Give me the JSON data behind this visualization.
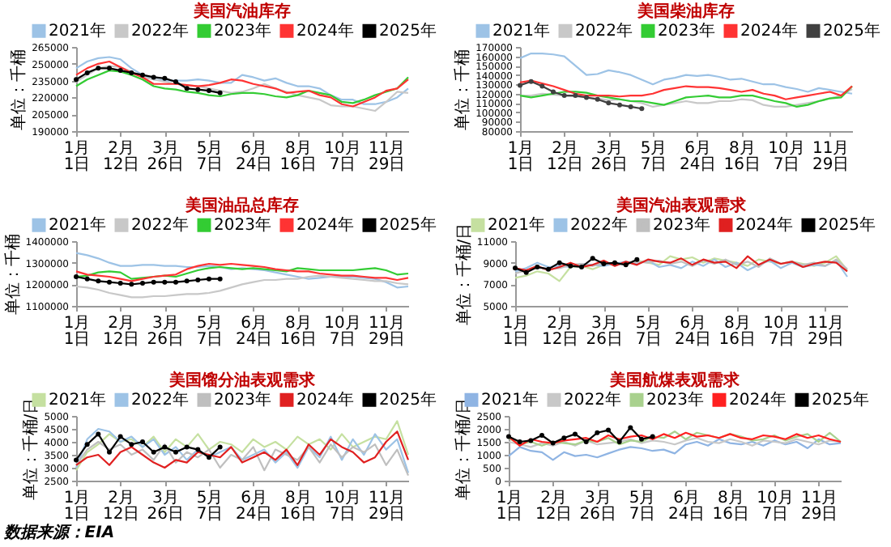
{
  "chart_data": [
    {
      "type": "line",
      "title": "美国汽油库存",
      "ylabel": "单位：千桶",
      "legend": "top",
      "categories": [
        "1月1日",
        null,
        null,
        null,
        "2月12日",
        null,
        null,
        null,
        "3月26日",
        null,
        null,
        null,
        "5月7日",
        null,
        null,
        null,
        "6月24日",
        null,
        null,
        null,
        "8月16日",
        null,
        null,
        null,
        "10月7日",
        null,
        null,
        null,
        "11月29日",
        null,
        null
      ],
      "ylim": [
        190000,
        265000
      ],
      "yticks": [
        190000,
        205000,
        220000,
        235000,
        250000,
        265000
      ],
      "series": [
        {
          "name": "2021年",
          "color": "#9dc3e6",
          "values": [
            246000,
            252000,
            255000,
            256000,
            254000,
            246000,
            240000,
            236000,
            235000,
            235000,
            235000,
            236000,
            235000,
            233000,
            233000,
            240000,
            238000,
            235000,
            237000,
            233000,
            230000,
            230000,
            228000,
            222000,
            218000,
            218000,
            214000,
            214000,
            216000,
            220000,
            228000
          ]
        },
        {
          "name": "2022年",
          "color": "#c8c8c8",
          "values": [
            234000,
            240000,
            246000,
            248000,
            247000,
            243000,
            238000,
            236000,
            234000,
            232000,
            231000,
            230000,
            228000,
            226000,
            224000,
            225000,
            228000,
            232000,
            228000,
            225000,
            222000,
            220000,
            218000,
            213000,
            212000,
            212000,
            210000,
            208000,
            216000,
            225000,
            224000
          ]
        },
        {
          "name": "2023年",
          "color": "#33cc33",
          "values": [
            230000,
            236000,
            240000,
            244000,
            243000,
            240000,
            236000,
            230000,
            228000,
            227000,
            225000,
            224000,
            222000,
            221000,
            223000,
            224000,
            224000,
            223000,
            221000,
            220000,
            222000,
            226000,
            224000,
            222000,
            216000,
            215000,
            218000,
            222000,
            225000,
            228000,
            238000
          ]
        },
        {
          "name": "2024年",
          "color": "#ff3333",
          "values": [
            240000,
            246000,
            250000,
            252000,
            247000,
            242000,
            238000,
            232000,
            232000,
            232000,
            231000,
            230000,
            231000,
            233000,
            236000,
            235000,
            232000,
            230000,
            228000,
            224000,
            225000,
            226000,
            222000,
            220000,
            214000,
            212000,
            216000,
            220000,
            226000,
            228000,
            236000
          ]
        },
        {
          "name": "2025年",
          "color": "#000000",
          "marker": "circle",
          "values": [
            236000,
            242000,
            246000,
            246000,
            244000,
            242000,
            240000,
            238000,
            237000,
            234000,
            228000,
            227000,
            226000,
            224000,
            null,
            null,
            null,
            null,
            null,
            null,
            null,
            null,
            null,
            null,
            null,
            null,
            null,
            null,
            null,
            null,
            null
          ]
        }
      ]
    },
    {
      "type": "line",
      "title": "美国柴油库存",
      "ylabel": "单位：千桶",
      "legend": "top",
      "categories": [
        "1月1日",
        null,
        null,
        null,
        "2月12日",
        null,
        null,
        null,
        "3月26日",
        null,
        null,
        null,
        "5月7日",
        null,
        null,
        null,
        "6月24日",
        null,
        null,
        null,
        "8月16日",
        null,
        null,
        null,
        "10月7日",
        null,
        null,
        null,
        "11月29日",
        null,
        null
      ],
      "ylim": [
        80000,
        170000
      ],
      "yticks": [
        80000,
        90000,
        100000,
        110000,
        120000,
        130000,
        140000,
        150000,
        160000,
        170000
      ],
      "series": [
        {
          "name": "2021年",
          "color": "#9dc3e6",
          "values": [
            158000,
            163000,
            163000,
            162000,
            160000,
            150000,
            140000,
            141000,
            145000,
            143000,
            140000,
            135000,
            130000,
            135000,
            137000,
            140000,
            139000,
            140000,
            138000,
            135000,
            136000,
            133000,
            130000,
            130000,
            127000,
            125000,
            122000,
            126000,
            124000,
            122000,
            120000
          ]
        },
        {
          "name": "2022年",
          "color": "#c8c8c8",
          "values": [
            118000,
            118000,
            120000,
            119000,
            118000,
            117000,
            116000,
            115000,
            113000,
            114000,
            112000,
            110000,
            106000,
            108000,
            110000,
            112000,
            110000,
            110000,
            112000,
            112000,
            114000,
            113000,
            108000,
            106000,
            106000,
            108000,
            110000,
            112000,
            115000,
            118000,
            125000
          ]
        },
        {
          "name": "2023年",
          "color": "#33cc33",
          "values": [
            118000,
            116000,
            118000,
            120000,
            122000,
            122000,
            121000,
            118000,
            116000,
            114000,
            112000,
            112000,
            110000,
            108000,
            112000,
            116000,
            117000,
            118000,
            116000,
            116000,
            118000,
            118000,
            115000,
            112000,
            110000,
            106000,
            108000,
            112000,
            115000,
            116000,
            128000
          ]
        },
        {
          "name": "2024年",
          "color": "#ff3333",
          "values": [
            132000,
            134000,
            131000,
            128000,
            124000,
            120000,
            118000,
            118000,
            118000,
            117000,
            118000,
            118000,
            120000,
            124000,
            126000,
            128000,
            127000,
            127000,
            126000,
            124000,
            122000,
            124000,
            120000,
            118000,
            114000,
            116000,
            118000,
            120000,
            122000,
            118000,
            128000
          ]
        },
        {
          "name": "2025年",
          "color": "#404040",
          "marker": "circle",
          "values": [
            129000,
            133000,
            128000,
            122000,
            118000,
            118000,
            116000,
            114000,
            110000,
            108000,
            106000,
            104000,
            null,
            null,
            null,
            null,
            null,
            null,
            null,
            null,
            null,
            null,
            null,
            null,
            null,
            null,
            null,
            null,
            null,
            null,
            null
          ]
        }
      ]
    },
    {
      "type": "line",
      "title": "美国油品总库存",
      "ylabel": "单位：千桶",
      "legend": "top",
      "categories": [
        "1月1日",
        null,
        null,
        null,
        "2月12日",
        null,
        null,
        null,
        "3月26日",
        null,
        null,
        null,
        "5月7日",
        null,
        null,
        null,
        "6月24日",
        null,
        null,
        null,
        "8月16日",
        null,
        null,
        null,
        "10月7日",
        null,
        null,
        null,
        "11月29日",
        null,
        null
      ],
      "ylim": [
        1100000,
        1400000
      ],
      "yticks": [
        1100000,
        1200000,
        1300000,
        1400000
      ],
      "series": [
        {
          "name": "2021年",
          "color": "#9dc3e6",
          "values": [
            1345000,
            1335000,
            1320000,
            1300000,
            1285000,
            1285000,
            1290000,
            1290000,
            1285000,
            1285000,
            1280000,
            1280000,
            1285000,
            1280000,
            1270000,
            1275000,
            1270000,
            1265000,
            1255000,
            1245000,
            1235000,
            1225000,
            1230000,
            1235000,
            1235000,
            1235000,
            1230000,
            1225000,
            1210000,
            1185000,
            1190000
          ]
        },
        {
          "name": "2022年",
          "color": "#c8c8c8",
          "values": [
            1190000,
            1185000,
            1175000,
            1160000,
            1150000,
            1140000,
            1140000,
            1145000,
            1145000,
            1150000,
            1155000,
            1155000,
            1160000,
            1170000,
            1185000,
            1200000,
            1210000,
            1220000,
            1220000,
            1225000,
            1225000,
            1235000,
            1240000,
            1235000,
            1230000,
            1225000,
            1220000,
            1215000,
            1215000,
            1205000,
            1200000
          ]
        },
        {
          "name": "2023年",
          "color": "#33cc33",
          "values": [
            1235000,
            1240000,
            1255000,
            1260000,
            1255000,
            1225000,
            1230000,
            1235000,
            1240000,
            1235000,
            1250000,
            1265000,
            1275000,
            1280000,
            1275000,
            1270000,
            1275000,
            1270000,
            1265000,
            1260000,
            1275000,
            1270000,
            1265000,
            1265000,
            1265000,
            1265000,
            1270000,
            1275000,
            1265000,
            1245000,
            1250000
          ]
        },
        {
          "name": "2024年",
          "color": "#ff3333",
          "values": [
            1260000,
            1245000,
            1240000,
            1235000,
            1225000,
            1215000,
            1225000,
            1235000,
            1240000,
            1245000,
            1270000,
            1285000,
            1295000,
            1290000,
            1295000,
            1290000,
            1285000,
            1280000,
            1270000,
            1265000,
            1260000,
            1260000,
            1250000,
            1245000,
            1240000,
            1240000,
            1235000,
            1230000,
            1230000,
            1220000,
            1230000
          ]
        },
        {
          "name": "2025年",
          "color": "#000000",
          "marker": "circle",
          "values": [
            1235000,
            1225000,
            1215000,
            1210000,
            1205000,
            1200000,
            1205000,
            1210000,
            1210000,
            1210000,
            1215000,
            1220000,
            1225000,
            1225000,
            null,
            null,
            null,
            null,
            null,
            null,
            null,
            null,
            null,
            null,
            null,
            null,
            null,
            null,
            null,
            null,
            null
          ]
        }
      ]
    },
    {
      "type": "line",
      "title": "美国汽油表观需求",
      "ylabel": "单位：千桶/日",
      "legend": "top",
      "categories": [
        "1月1日",
        null,
        null,
        null,
        "2月12日",
        null,
        null,
        null,
        "3月26日",
        null,
        null,
        null,
        "5月7日",
        null,
        null,
        null,
        "6月24日",
        null,
        null,
        null,
        "8月16日",
        null,
        null,
        null,
        "10月7日",
        null,
        null,
        null,
        "11月29日",
        null,
        null
      ],
      "ylim": [
        5000,
        11000
      ],
      "yticks": [
        5000,
        7000,
        9000,
        11000
      ],
      "series": [
        {
          "name": "2021年",
          "color": "#c5e0a0",
          "values": [
            7600,
            7800,
            8200,
            8000,
            7300,
            8600,
            8700,
            8400,
            8800,
            9000,
            8900,
            9200,
            9000,
            8800,
            9600,
            9300,
            9500,
            9000,
            9400,
            9200,
            9000,
            8700,
            9300,
            9100,
            8900,
            9100,
            8900,
            8700,
            9000,
            9600,
            8300
          ]
        },
        {
          "name": "2022年",
          "color": "#9dc3e6",
          "values": [
            8200,
            8500,
            9000,
            8600,
            8700,
            8600,
            8900,
            8800,
            8700,
            8900,
            9100,
            8900,
            9200,
            8600,
            8800,
            8500,
            9100,
            8700,
            9300,
            8600,
            9000,
            8300,
            8800,
            9200,
            8500,
            9000,
            8600,
            8800,
            8700,
            9200,
            7700
          ]
        },
        {
          "name": "2023年",
          "color": "#bfbfbf",
          "values": [
            8000,
            8300,
            8600,
            8400,
            8500,
            8800,
            8900,
            8700,
            9000,
            8800,
            8900,
            9100,
            9000,
            9200,
            8900,
            9100,
            8700,
            9200,
            8900,
            9300,
            8800,
            9100,
            8600,
            9400,
            8900,
            9100,
            8800,
            9000,
            8700,
            9300,
            8400
          ]
        },
        {
          "name": "2024年",
          "color": "#e02020",
          "values": [
            8500,
            8300,
            8700,
            8300,
            8600,
            9000,
            8600,
            8800,
            9200,
            8700,
            9100,
            8800,
            9300,
            9100,
            9000,
            9400,
            8800,
            9300,
            9000,
            9100,
            8500,
            9600,
            8800,
            9300,
            8900,
            9100,
            8600,
            8900,
            9100,
            9000,
            8200
          ]
        },
        {
          "name": "2025年",
          "color": "#000000",
          "marker": "circle",
          "values": [
            8500,
            8100,
            8600,
            8400,
            9000,
            8700,
            8600,
            9400,
            8900,
            9000,
            8800,
            9300,
            null,
            null,
            null,
            null,
            null,
            null,
            null,
            null,
            null,
            null,
            null,
            null,
            null,
            null,
            null,
            null,
            null,
            null,
            null
          ]
        }
      ]
    },
    {
      "type": "line",
      "title": "美国馏分油表观需求",
      "ylabel": "单位：千桶/日",
      "legend": "top",
      "categories": [
        "1月1日",
        null,
        null,
        null,
        "2月12日",
        null,
        null,
        null,
        "3月26日",
        null,
        null,
        null,
        "5月7日",
        null,
        null,
        null,
        "6月24日",
        null,
        null,
        null,
        "8月16日",
        null,
        null,
        null,
        "10月7日",
        null,
        null,
        null,
        "11月29日",
        null,
        null
      ],
      "ylim": [
        2500,
        5000
      ],
      "yticks": [
        2500,
        3000,
        3500,
        4000,
        4500,
        5000
      ],
      "series": [
        {
          "name": "2021年",
          "color": "#c5e0a0",
          "values": [
            2900,
            3600,
            3900,
            4300,
            4000,
            4100,
            3800,
            4200,
            3600,
            4100,
            3800,
            4300,
            3700,
            4000,
            3900,
            3600,
            4100,
            3800,
            4000,
            3700,
            4200,
            3900,
            4100,
            3700,
            4300,
            3800,
            4000,
            4200,
            4100,
            4800,
            3500
          ]
        },
        {
          "name": "2022年",
          "color": "#9dc3e6",
          "values": [
            3000,
            4100,
            4500,
            4400,
            4000,
            4200,
            3800,
            4100,
            3500,
            3800,
            3300,
            3700,
            3400,
            3600,
            3800,
            3300,
            3500,
            3700,
            3200,
            3600,
            3000,
            3800,
            3400,
            4200,
            3300,
            4100,
            3500,
            4300,
            3700,
            4100,
            2800
          ]
        },
        {
          "name": "2023年",
          "color": "#bfbfbf",
          "values": [
            3100,
            3700,
            4000,
            3700,
            3900,
            3500,
            3700,
            3300,
            3900,
            3200,
            3600,
            3400,
            3700,
            3000,
            3500,
            3300,
            3800,
            2900,
            3700,
            3500,
            3300,
            3800,
            3200,
            3900,
            3400,
            3800,
            3600,
            3900,
            3100,
            3700,
            2700
          ]
        },
        {
          "name": "2024年",
          "color": "#e02020",
          "values": [
            3100,
            3400,
            3500,
            3100,
            3600,
            3800,
            3500,
            3200,
            3000,
            3300,
            3200,
            3600,
            3500,
            3400,
            3800,
            3200,
            3400,
            3600,
            3300,
            3700,
            3100,
            3900,
            3500,
            4100,
            3800,
            3600,
            3200,
            3400,
            4000,
            4400,
            3300
          ]
        },
        {
          "name": "2025年",
          "color": "#000000",
          "marker": "circle",
          "values": [
            3300,
            3900,
            4300,
            3600,
            4200,
            3900,
            4000,
            3600,
            3800,
            3600,
            3800,
            3700,
            3400,
            3800,
            null,
            null,
            null,
            null,
            null,
            null,
            null,
            null,
            null,
            null,
            null,
            null,
            null,
            null,
            null,
            null,
            null
          ]
        }
      ]
    },
    {
      "type": "line",
      "title": "美国航煤表观需求",
      "ylabel": "单位：千桶/日",
      "legend": "top",
      "categories": [
        "1月1日",
        null,
        null,
        null,
        "2月12日",
        null,
        null,
        null,
        "3月26日",
        null,
        null,
        null,
        "5月7日",
        null,
        null,
        null,
        "6月24日",
        null,
        null,
        null,
        "8月16日",
        null,
        null,
        null,
        "10月7日",
        null,
        null,
        null,
        "11月29日",
        null,
        null
      ],
      "ylim": [
        0,
        2500
      ],
      "yticks": [
        0,
        500,
        1000,
        1500,
        2000,
        2500
      ],
      "series": [
        {
          "name": "2021年",
          "color": "#8fb4e3",
          "values": [
            950,
            1300,
            1150,
            1100,
            800,
            1100,
            950,
            1000,
            900,
            1050,
            1200,
            1300,
            1250,
            1150,
            1200,
            1050,
            1400,
            1500,
            1350,
            1600,
            1450,
            1400,
            1500,
            1350,
            1550,
            1400,
            1500,
            1250,
            1600,
            1400,
            1450
          ]
        },
        {
          "name": "2022年",
          "color": "#c8c8c8",
          "values": [
            1500,
            1400,
            1300,
            1450,
            1350,
            1500,
            1350,
            1550,
            1400,
            1450,
            1500,
            1600,
            1450,
            1550,
            1500,
            1400,
            1550,
            1650,
            1500,
            1450,
            1600,
            1500,
            1350,
            1550,
            1500,
            1450,
            1600,
            1500,
            1400,
            1550,
            1500
          ]
        },
        {
          "name": "2023年",
          "color": "#a9d18e",
          "values": [
            1650,
            1400,
            1500,
            1350,
            1500,
            1450,
            1400,
            1550,
            1500,
            1650,
            1400,
            1550,
            1500,
            1700,
            1650,
            1900,
            1600,
            1850,
            1750,
            1650,
            1800,
            1700,
            1550,
            1600,
            1750,
            1550,
            1700,
            1800,
            1500,
            1850,
            1500
          ]
        },
        {
          "name": "2024年",
          "color": "#ff2020",
          "values": [
            1700,
            1350,
            1600,
            1500,
            1450,
            1550,
            1600,
            1650,
            1500,
            1750,
            1600,
            1700,
            1750,
            1600,
            1800,
            1650,
            1850,
            1700,
            1750,
            1650,
            1800,
            1650,
            1600,
            1750,
            1700,
            1600,
            1800,
            1650,
            1750,
            1600,
            1500
          ]
        },
        {
          "name": "2025年",
          "color": "#000000",
          "marker": "circle",
          "values": [
            1700,
            1500,
            1550,
            1750,
            1450,
            1650,
            1800,
            1500,
            1850,
            1950,
            1500,
            2050,
            1600,
            1700,
            null,
            null,
            null,
            null,
            null,
            null,
            null,
            null,
            null,
            null,
            null,
            null,
            null,
            null,
            null,
            null,
            null
          ]
        }
      ],
      "annotations": [
        "数据来源：EIA"
      ]
    }
  ]
}
